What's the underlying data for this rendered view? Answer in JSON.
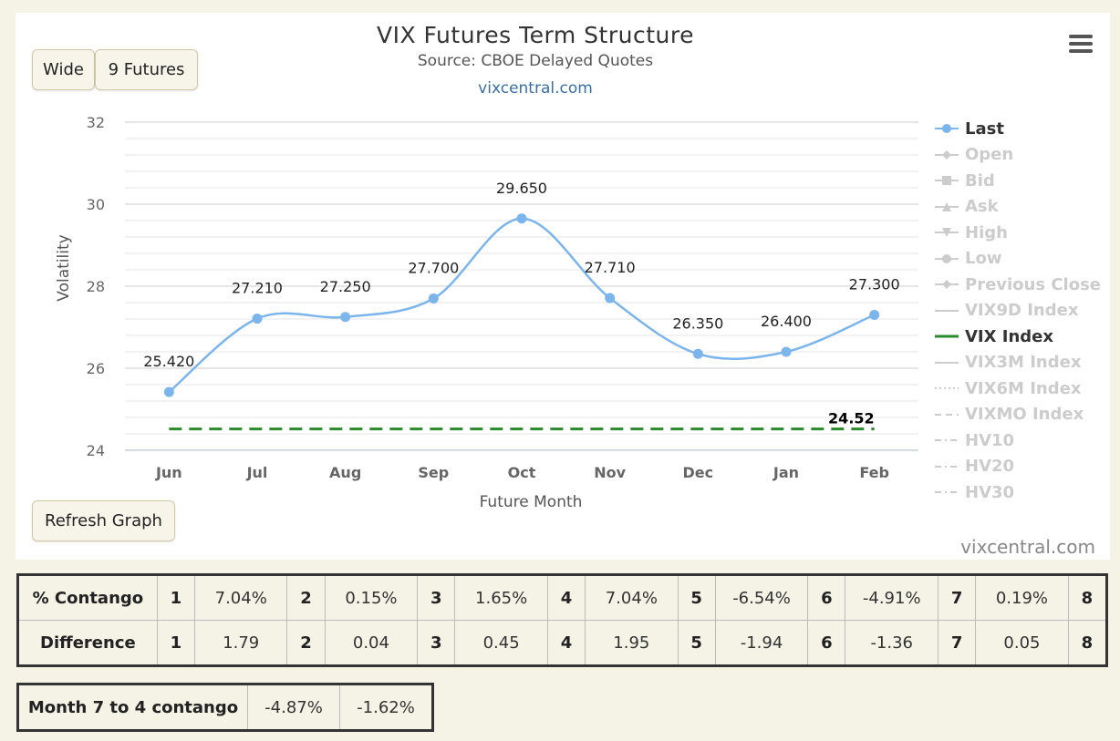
{
  "buttons": {
    "wide": "Wide",
    "futures": "9 Futures",
    "refresh": "Refresh Graph"
  },
  "credit": "vixcentral.com",
  "colors": {
    "last": "#7cb5ec",
    "vix": "#2b8a2b",
    "grid": "#e6e6e6",
    "inactive": "#cccccc"
  },
  "chart_data": {
    "type": "line",
    "title": "VIX Futures Term Structure",
    "subtitle": "Source: CBOE Delayed Quotes",
    "link": "vixcentral.com",
    "xlabel": "Future Month",
    "ylabel": "Volatility",
    "categories": [
      "Jun",
      "Jul",
      "Aug",
      "Sep",
      "Oct",
      "Nov",
      "Dec",
      "Jan",
      "Feb"
    ],
    "ylim": [
      24,
      32
    ],
    "yticks": [
      "24",
      "26",
      "28",
      "30",
      "32"
    ],
    "grid": true,
    "legend_position": "right",
    "series": [
      {
        "name": "Last",
        "values": [
          25.42,
          27.21,
          27.25,
          27.7,
          29.65,
          27.71,
          26.35,
          26.4,
          27.3
        ],
        "labels": [
          "25.420",
          "27.210",
          "27.250",
          "27.700",
          "29.650",
          "27.710",
          "26.350",
          "26.400",
          "27.300"
        ]
      },
      {
        "name": "VIX Index",
        "value": 24.52,
        "label": "24.52",
        "style": "dashed"
      }
    ],
    "legend": [
      {
        "name": "Last",
        "active": true,
        "symbol": "circle-line"
      },
      {
        "name": "Open",
        "active": false,
        "symbol": "diamond-line"
      },
      {
        "name": "Bid",
        "active": false,
        "symbol": "square-line"
      },
      {
        "name": "Ask",
        "active": false,
        "symbol": "triangle-line"
      },
      {
        "name": "High",
        "active": false,
        "symbol": "triangle-down-line"
      },
      {
        "name": "Low",
        "active": false,
        "symbol": "circle-line"
      },
      {
        "name": "Previous Close",
        "active": false,
        "symbol": "diamond-line"
      },
      {
        "name": "VIX9D Index",
        "active": false,
        "symbol": "solid"
      },
      {
        "name": "VIX Index",
        "active": true,
        "symbol": "solid-green"
      },
      {
        "name": "VIX3M Index",
        "active": false,
        "symbol": "solid"
      },
      {
        "name": "VIX6M Index",
        "active": false,
        "symbol": "dotted"
      },
      {
        "name": "VIXMO Index",
        "active": false,
        "symbol": "dashed"
      },
      {
        "name": "HV10",
        "active": false,
        "symbol": "dashdot"
      },
      {
        "name": "HV20",
        "active": false,
        "symbol": "dashdot"
      },
      {
        "name": "HV30",
        "active": false,
        "symbol": "dashdot"
      }
    ]
  },
  "contango_table": {
    "rows": [
      {
        "label": "% Contango",
        "cells": [
          [
            "1",
            "7.04%"
          ],
          [
            "2",
            "0.15%"
          ],
          [
            "3",
            "1.65%"
          ],
          [
            "4",
            "7.04%"
          ],
          [
            "5",
            "-6.54%"
          ],
          [
            "6",
            "-4.91%"
          ],
          [
            "7",
            "0.19%"
          ],
          [
            "8",
            ""
          ]
        ]
      },
      {
        "label": "Difference",
        "cells": [
          [
            "1",
            "1.79"
          ],
          [
            "2",
            "0.04"
          ],
          [
            "3",
            "0.45"
          ],
          [
            "4",
            "1.95"
          ],
          [
            "5",
            "-1.94"
          ],
          [
            "6",
            "-1.36"
          ],
          [
            "7",
            "0.05"
          ],
          [
            "8",
            ""
          ]
        ]
      }
    ]
  },
  "month_table": {
    "label": "Month 7 to 4 contango",
    "values": [
      "-4.87%",
      "-1.62%"
    ]
  }
}
